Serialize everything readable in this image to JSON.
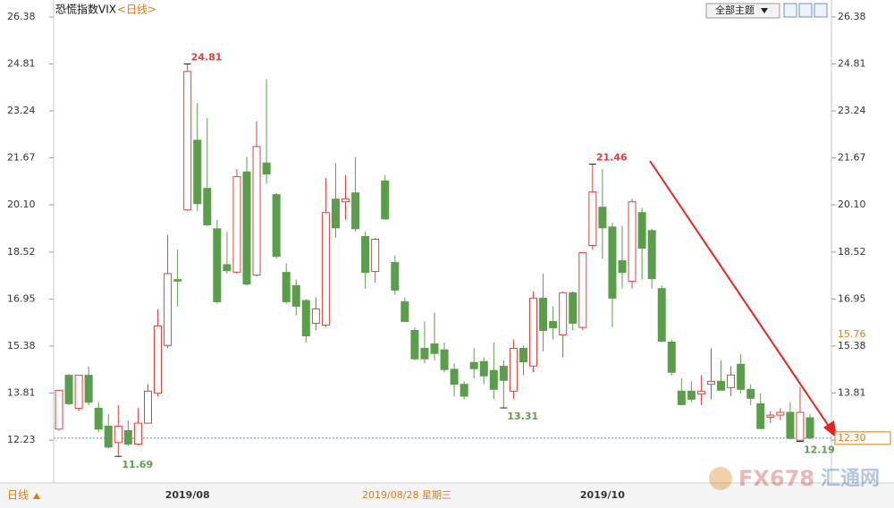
{
  "chart_data": {
    "type": "candlestick",
    "title": "恐慌指数VIX",
    "subtitle": "<日线>",
    "categories": [
      null,
      null,
      null,
      null,
      null,
      null,
      null,
      null,
      null,
      null,
      null,
      null,
      null,
      "2019/08",
      null,
      null,
      null,
      null,
      null,
      null,
      null,
      null,
      null,
      null,
      null,
      null,
      null,
      null,
      null,
      null,
      null,
      null,
      null,
      null,
      null,
      null,
      null,
      null,
      null,
      null,
      null,
      null,
      null,
      null,
      null,
      null,
      null,
      null,
      null,
      null,
      null,
      null,
      null,
      null,
      null,
      "2019/10",
      null,
      null,
      null,
      null,
      null,
      null,
      null,
      null,
      null,
      null,
      null,
      null,
      null,
      null,
      null,
      null,
      null,
      null,
      null,
      null,
      null
    ],
    "open": [
      12.6,
      14.4,
      13.3,
      14.4,
      13.3,
      12.7,
      12.15,
      12.55,
      12.1,
      12.8,
      13.8,
      15.4,
      17.6,
      19.93,
      22.26,
      20.65,
      19.3,
      18.1,
      17.85,
      21.2,
      17.75,
      21.5,
      20.44,
      17.84,
      17.4,
      16.9,
      16.14,
      16.08,
      20.29,
      20.2,
      20.5,
      19.04,
      17.87,
      20.9,
      18.17,
      16.86,
      15.9,
      15.3,
      15.45,
      15.25,
      14.6,
      14.1,
      14.83,
      14.86,
      14.56,
      14.7,
      13.87,
      15.3,
      14.71,
      16.98,
      16.2,
      15.75,
      17.16,
      16.0,
      18.74,
      20.02,
      19.36,
      18.23,
      17.54,
      19.84,
      19.24,
      17.3,
      15.51,
      13.87,
      13.87,
      13.78,
      14.1,
      14.2,
      13.99,
      14.77,
      13.93,
      13.45,
      13.0,
      13.07,
      13.16,
      12.23,
      12.98
    ],
    "high": [
      13.9,
      14.45,
      14.4,
      14.7,
      13.5,
      13.1,
      13.4,
      12.9,
      13.3,
      14.1,
      16.6,
      19.1,
      18.6,
      24.81,
      23.5,
      23.0,
      19.6,
      19.2,
      21.3,
      21.7,
      22.9,
      24.3,
      20.5,
      18.14,
      17.6,
      16.95,
      17.0,
      21.0,
      21.5,
      21.1,
      21.7,
      19.2,
      19.0,
      21.1,
      18.4,
      17.0,
      16.0,
      16.2,
      16.5,
      15.5,
      14.8,
      14.2,
      15.3,
      15.0,
      15.5,
      14.9,
      15.6,
      15.4,
      17.2,
      17.8,
      16.7,
      17.2,
      17.2,
      18.5,
      21.46,
      21.3,
      19.5,
      19.4,
      20.3,
      20.0,
      19.3,
      17.4,
      15.6,
      14.3,
      14.2,
      14.4,
      15.3,
      14.9,
      14.7,
      15.1,
      14.1,
      13.8,
      13.2,
      13.3,
      13.5,
      14.0,
      13.1
    ],
    "low": [
      12.55,
      13.4,
      13.2,
      13.4,
      12.5,
      11.95,
      11.69,
      12.05,
      12.05,
      12.8,
      13.7,
      15.3,
      16.7,
      19.9,
      19.9,
      19.4,
      16.8,
      17.8,
      17.8,
      17.4,
      17.7,
      20.8,
      18.3,
      16.8,
      16.4,
      15.5,
      15.9,
      16.0,
      19.0,
      19.6,
      19.2,
      17.3,
      17.5,
      19.6,
      17.1,
      16.2,
      14.9,
      14.8,
      14.9,
      14.5,
      13.7,
      13.6,
      14.3,
      14.1,
      13.6,
      13.31,
      13.6,
      14.4,
      14.5,
      15.2,
      15.6,
      15.0,
      15.9,
      15.9,
      18.6,
      18.3,
      16.0,
      17.3,
      17.3,
      17.6,
      17.3,
      15.5,
      14.4,
      13.4,
      13.5,
      13.4,
      13.6,
      13.9,
      13.7,
      13.8,
      13.4,
      12.6,
      12.8,
      12.9,
      12.25,
      12.19,
      12.25
    ],
    "close": [
      13.9,
      13.45,
      14.4,
      13.5,
      12.6,
      12.0,
      12.7,
      12.1,
      12.8,
      13.87,
      16.05,
      17.8,
      17.55,
      24.56,
      20.14,
      19.43,
      16.86,
      17.9,
      21.04,
      17.45,
      22.05,
      21.13,
      18.38,
      16.86,
      16.71,
      15.72,
      16.62,
      19.84,
      19.33,
      20.3,
      19.3,
      17.84,
      18.95,
      19.63,
      17.25,
      16.2,
      14.95,
      14.95,
      15.13,
      14.59,
      14.1,
      13.7,
      14.62,
      14.38,
      13.93,
      14.23,
      15.3,
      14.85,
      16.98,
      15.9,
      15.99,
      17.16,
      16.14,
      18.5,
      20.53,
      19.33,
      16.98,
      17.84,
      20.2,
      18.65,
      17.63,
      15.54,
      14.5,
      13.42,
      13.6,
      13.87,
      14.2,
      13.9,
      14.41,
      13.93,
      13.63,
      12.62,
      13.07,
      13.16,
      12.29,
      13.16,
      12.3
    ],
    "up_color": "#e0403a",
    "down_color": "#5a9e4b",
    "marked_points": [
      [
        13,
        "high"
      ],
      [
        6,
        "low"
      ],
      [
        45,
        "low"
      ],
      [
        54,
        "high"
      ],
      [
        75,
        "low"
      ]
    ],
    "ylim": [
      10.8,
      26.8
    ],
    "yticks": [
      12.23,
      13.81,
      15.38,
      16.95,
      18.52,
      {
        "value": 20.1,
        "label": "20.10"
      },
      21.67,
      23.24,
      24.81,
      26.38
    ],
    "last_price": {
      "value": 12.3,
      "label": "12.30"
    },
    "cursor_value": 15.76,
    "cursor_date": "2019/08/28 星期三",
    "period_label": "日线",
    "theme_button": "全部主题",
    "watermark": [
      "FX678",
      "汇通网"
    ]
  }
}
